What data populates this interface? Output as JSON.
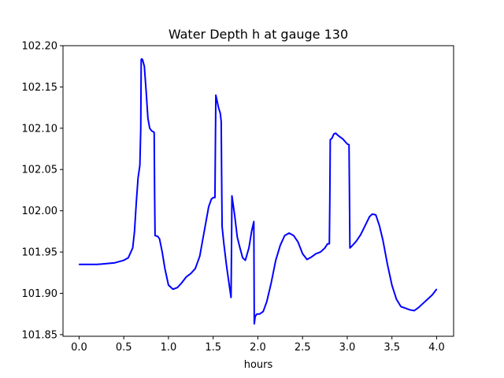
{
  "chart_data": {
    "type": "line",
    "title": "Water Depth h at gauge 130",
    "xlabel": "hours",
    "ylabel": "",
    "xlim": [
      -0.18,
      4.19
    ],
    "ylim": [
      101.848,
      102.2
    ],
    "x_ticks": [
      0.0,
      0.5,
      1.0,
      1.5,
      2.0,
      2.5,
      3.0,
      3.5,
      4.0
    ],
    "x_tick_labels": [
      "0.0",
      "0.5",
      "1.0",
      "1.5",
      "2.0",
      "2.5",
      "3.0",
      "3.5",
      "4.0"
    ],
    "y_ticks": [
      101.85,
      101.9,
      101.95,
      102.0,
      102.05,
      102.1,
      102.15,
      102.2
    ],
    "y_tick_labels": [
      "101.85",
      "101.90",
      "101.95",
      "102.00",
      "102.05",
      "102.10",
      "102.15",
      "102.20"
    ],
    "grid": false,
    "legend": "none",
    "series": [
      {
        "color": "#0000ff",
        "x": [
          0.0,
          0.2,
          0.4,
          0.5,
          0.55,
          0.6,
          0.62,
          0.64,
          0.66,
          0.68,
          0.69,
          0.695,
          0.7,
          0.71,
          0.73,
          0.75,
          0.77,
          0.79,
          0.81,
          0.84,
          0.845,
          0.85,
          0.88,
          0.9,
          0.93,
          0.96,
          1.0,
          1.05,
          1.1,
          1.15,
          1.2,
          1.25,
          1.3,
          1.35,
          1.4,
          1.45,
          1.48,
          1.5,
          1.52,
          1.525,
          1.53,
          1.56,
          1.58,
          1.59,
          1.595,
          1.6,
          1.62,
          1.65,
          1.68,
          1.7,
          1.705,
          1.71,
          1.74,
          1.77,
          1.8,
          1.83,
          1.86,
          1.9,
          1.93,
          1.955,
          1.96,
          1.97,
          1.99,
          2.02,
          2.06,
          2.1,
          2.15,
          2.2,
          2.25,
          2.3,
          2.35,
          2.4,
          2.45,
          2.5,
          2.55,
          2.6,
          2.65,
          2.7,
          2.75,
          2.78,
          2.8,
          2.805,
          2.81,
          2.83,
          2.85,
          2.87,
          2.9,
          2.95,
          3.0,
          3.02,
          3.025,
          3.03,
          3.05,
          3.1,
          3.15,
          3.2,
          3.25,
          3.28,
          3.32,
          3.36,
          3.4,
          3.45,
          3.5,
          3.55,
          3.6,
          3.65,
          3.7,
          3.75,
          3.8,
          3.85,
          3.9,
          3.95,
          4.0
        ],
        "y": [
          101.935,
          101.935,
          101.937,
          101.94,
          101.943,
          101.955,
          101.975,
          102.01,
          102.04,
          102.055,
          102.1,
          102.183,
          102.184,
          102.183,
          102.175,
          102.145,
          102.112,
          102.1,
          102.097,
          102.095,
          102.02,
          101.97,
          101.969,
          101.966,
          101.95,
          101.93,
          101.91,
          101.905,
          101.907,
          101.913,
          101.92,
          101.924,
          101.93,
          101.945,
          101.975,
          102.005,
          102.014,
          102.016,
          102.016,
          102.08,
          102.14,
          102.125,
          102.118,
          102.108,
          102.04,
          101.981,
          101.96,
          101.933,
          101.91,
          101.895,
          101.95,
          102.018,
          101.995,
          101.968,
          101.955,
          101.943,
          101.94,
          101.955,
          101.975,
          101.987,
          101.863,
          101.872,
          101.875,
          101.875,
          101.878,
          101.89,
          101.913,
          101.94,
          101.958,
          101.97,
          101.973,
          101.97,
          101.962,
          101.948,
          101.941,
          101.944,
          101.948,
          101.95,
          101.955,
          101.96,
          101.96,
          102.01,
          102.086,
          102.088,
          102.093,
          102.094,
          102.091,
          102.087,
          102.081,
          102.08,
          102.02,
          101.955,
          101.957,
          101.963,
          101.971,
          101.982,
          101.993,
          101.996,
          101.995,
          101.982,
          101.964,
          101.935,
          101.91,
          101.893,
          101.884,
          101.882,
          101.88,
          101.879,
          101.883,
          101.888,
          101.893,
          101.898,
          101.905
        ]
      }
    ]
  }
}
